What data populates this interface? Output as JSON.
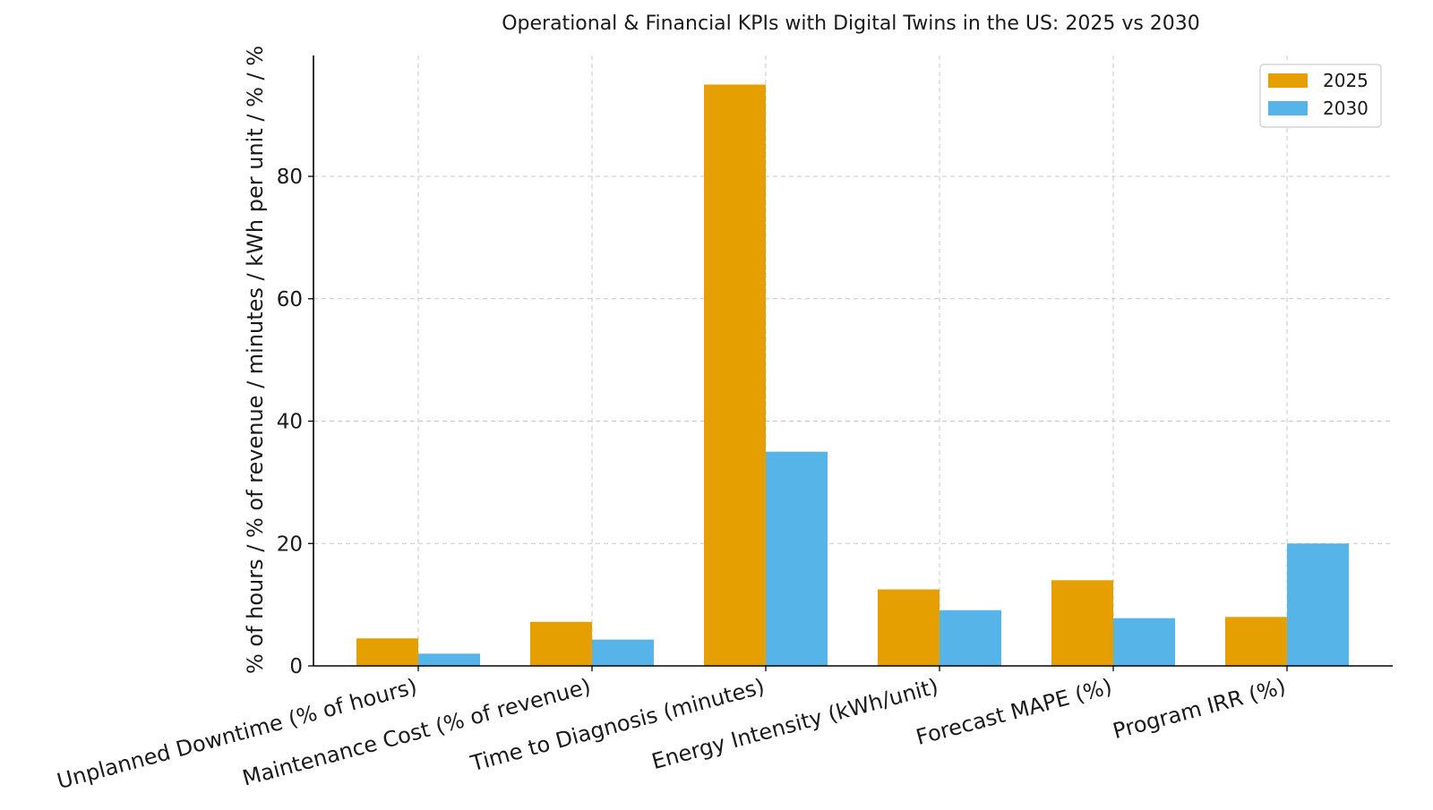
{
  "chart_data": {
    "type": "bar",
    "title": "Operational & Financial KPIs with Digital Twins in the US: 2025 vs 2030",
    "xlabel": "",
    "ylabel": "% of hours / % of revenue / minutes / kWh per unit / % / %",
    "categories": [
      "Unplanned Downtime (% of hours)",
      "Maintenance Cost (% of revenue)",
      "Time to Diagnosis (minutes)",
      "Energy Intensity (kWh/unit)",
      "Forecast MAPE (%)",
      "Program IRR (%)"
    ],
    "series": [
      {
        "name": "2025",
        "color": "#E69F00",
        "values": [
          4.5,
          7.2,
          95,
          12.5,
          14,
          8
        ]
      },
      {
        "name": "2030",
        "color": "#56B4E9",
        "values": [
          2.0,
          4.3,
          35,
          9.1,
          7.8,
          20
        ]
      }
    ],
    "ylim": [
      0,
      99.75
    ],
    "yticks": [
      0,
      20,
      40,
      60,
      80
    ],
    "grid": true,
    "legend_position": "top-right"
  }
}
